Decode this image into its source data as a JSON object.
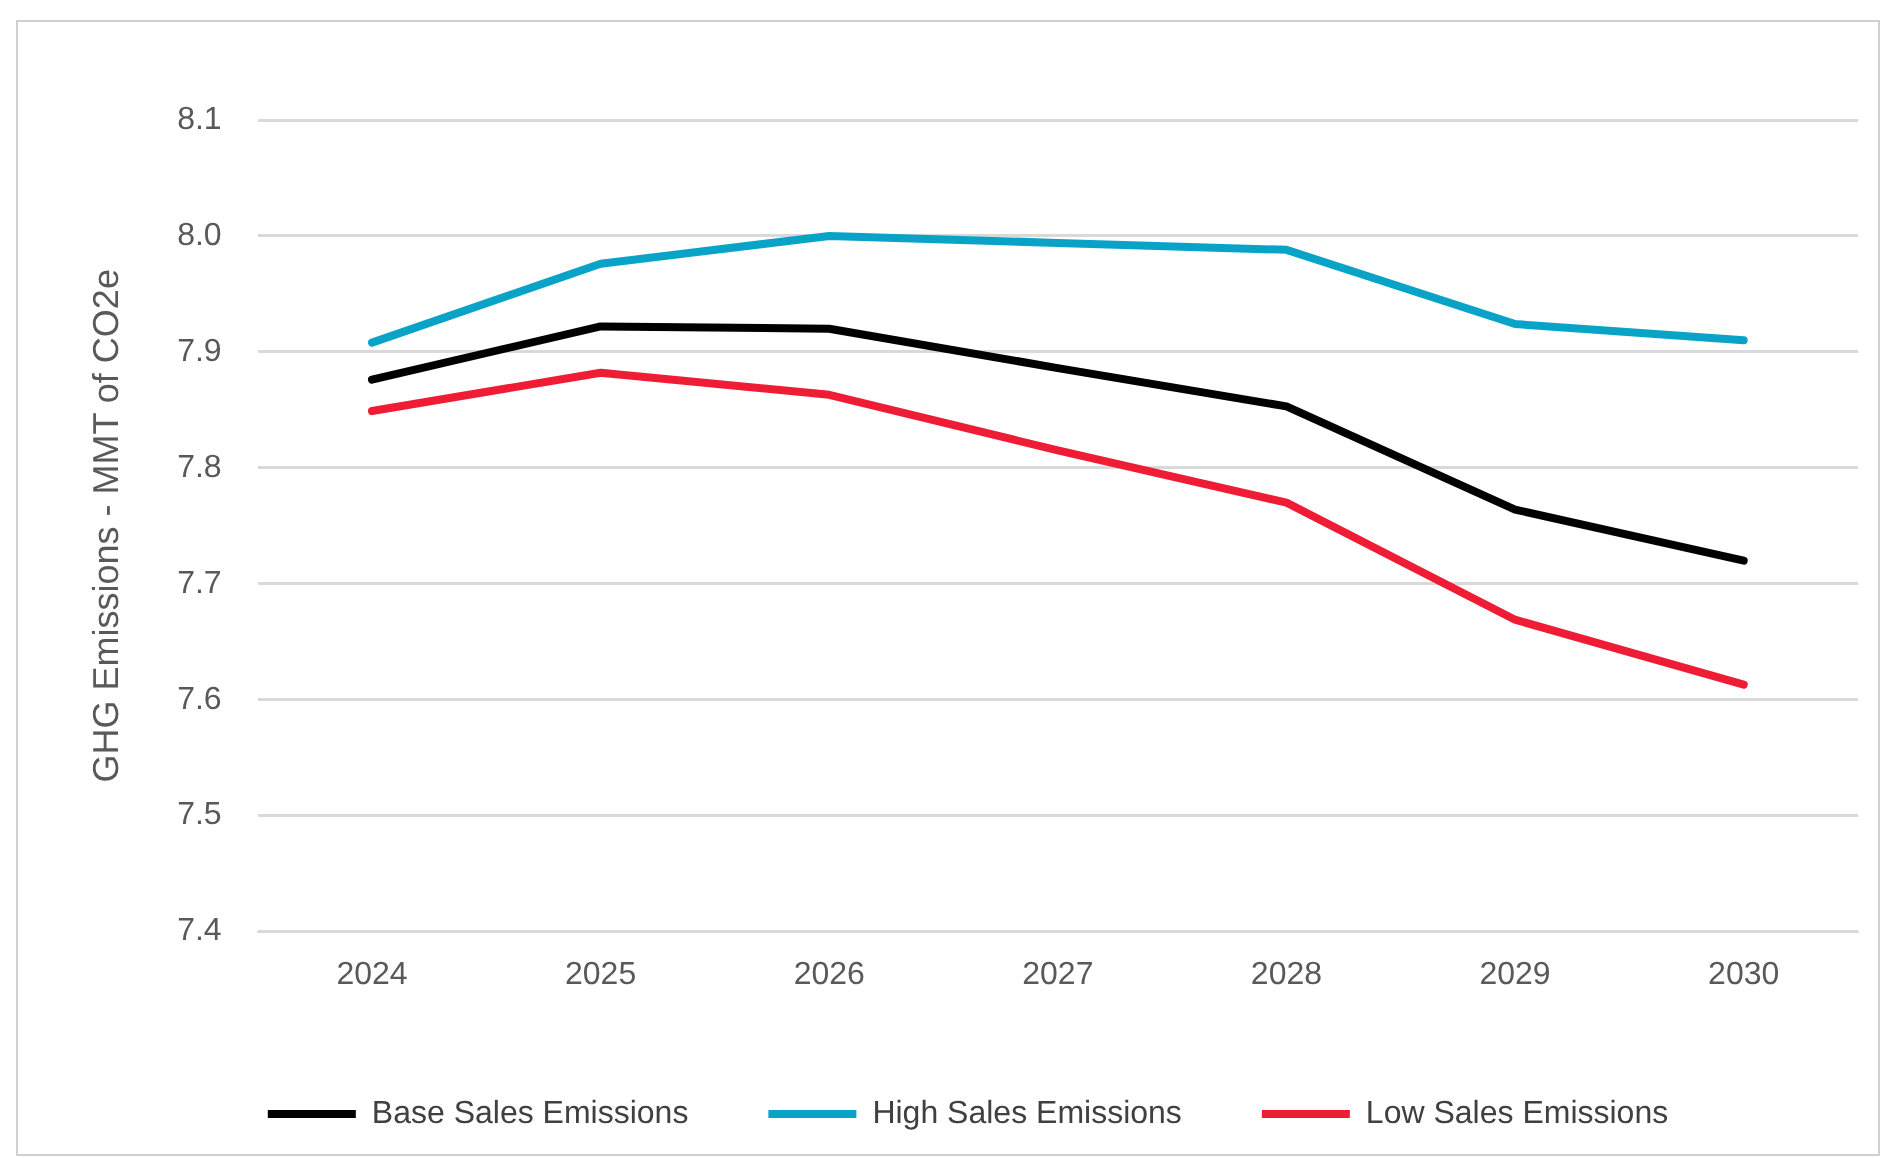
{
  "chart_data": {
    "type": "line",
    "ylabel": "GHG Emissions - MMT of CO2e",
    "categories": [
      "2024",
      "2025",
      "2026",
      "2027",
      "2028",
      "2029",
      "2030"
    ],
    "series": [
      {
        "name": "Base Sales Emissions",
        "color": "#000000",
        "values": [
          7.876,
          7.922,
          7.92,
          7.886,
          7.853,
          7.764,
          7.72
        ]
      },
      {
        "name": "High Sales Emissions",
        "color": "#0aa3c8",
        "values": [
          7.908,
          7.976,
          8.0,
          7.994,
          7.988,
          7.924,
          7.91
        ]
      },
      {
        "name": "Low Sales Emissions",
        "color": "#ee1c35",
        "values": [
          7.849,
          7.882,
          7.863,
          7.815,
          7.77,
          7.669,
          7.613
        ]
      }
    ],
    "ylim": [
      7.4,
      8.1
    ],
    "yticks": [
      7.4,
      7.5,
      7.6,
      7.7,
      7.8,
      7.9,
      {
        "value": 8.0,
        "label": "8.0"
      },
      8.1
    ],
    "grid": "y",
    "legend": "bottom",
    "marker": "none",
    "line_style": "solid"
  }
}
